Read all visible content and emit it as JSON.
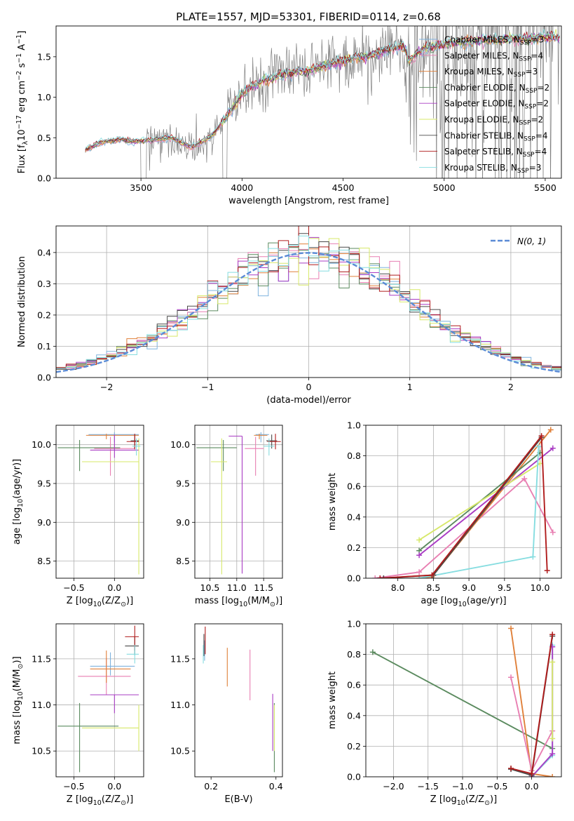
{
  "figure": {
    "title": "PLATE=1557, MJD=53301, FIBERID=0114, z=0.68"
  },
  "models": [
    {
      "key": "chabrier_miles",
      "label": "Chabrier MILES, N$_{SSP}$=3",
      "label_main": "Chabrier MILES, N",
      "label_sub": "SSP",
      "label_tail": "=3",
      "color": "#7fb3de"
    },
    {
      "key": "salpeter_miles",
      "label": "Salpeter MILES, N$_{SSP}$=4",
      "label_main": "Salpeter MILES, N",
      "label_sub": "SSP",
      "label_tail": "=4",
      "color": "#e87fb2"
    },
    {
      "key": "kroupa_miles",
      "label": "Kroupa MILES, N$_{SSP}$=3",
      "label_main": "Kroupa MILES, N",
      "label_sub": "SSP",
      "label_tail": "=3",
      "color": "#e0803a"
    },
    {
      "key": "chabrier_elodie",
      "label": "Chabrier ELODIE, N$_{SSP}$=2",
      "label_main": "Chabrier ELODIE, N",
      "label_sub": "SSP",
      "label_tail": "=2",
      "color": "#5a8a5e"
    },
    {
      "key": "salpeter_elodie",
      "label": "Salpeter ELODIE, N$_{SSP}$=2",
      "label_main": "Salpeter ELODIE, N",
      "label_sub": "SSP",
      "label_tail": "=2",
      "color": "#a93cc4"
    },
    {
      "key": "kroupa_elodie",
      "label": "Kroupa ELODIE, N$_{SSP}$=2",
      "label_main": "Kroupa ELODIE, N",
      "label_sub": "SSP",
      "label_tail": "=2",
      "color": "#d7e86a"
    },
    {
      "key": "chabrier_stelib",
      "label": "Chabrier STELIB, N$_{SSP}$=4",
      "label_main": "Chabrier STELIB, N",
      "label_sub": "SSP",
      "label_tail": "=4",
      "color": "#4a4a4a"
    },
    {
      "key": "salpeter_stelib",
      "label": "Salpeter STELIB, N$_{SSP}$=4",
      "label_main": "Salpeter STELIB, N",
      "label_sub": "SSP",
      "label_tail": "=4",
      "color": "#b01c1c"
    },
    {
      "key": "kroupa_stelib",
      "label": "Kroupa STELIB, N$_{SSP}$=3",
      "label_main": "Kroupa STELIB, N",
      "label_sub": "SSP",
      "label_tail": "=3",
      "color": "#86dde0"
    }
  ],
  "chart_data": [
    {
      "id": "spectrum",
      "type": "line",
      "xlabel": "wavelength [Angstrom, rest frame]",
      "ylabel": "Flux [f$_\\lambda$10$^{-17}$ erg cm$^{-2}$ s$^{-1}$ A$^{-1}$]",
      "xlim": [
        3080,
        5580
      ],
      "ylim": [
        0,
        1.88
      ],
      "xticks": [
        3500,
        4000,
        4500,
        5000,
        5500
      ],
      "yticks": [
        0.0,
        0.5,
        1.0,
        1.5
      ],
      "grid": false,
      "legend": "upper right",
      "data_color": "#808080",
      "data_range": [
        3225,
        5575
      ],
      "model_x": [
        3225,
        3300,
        3400,
        3450,
        3550,
        3650,
        3750,
        3850,
        3950,
        4000,
        4100,
        4200,
        4300,
        4400,
        4500,
        4600,
        4700,
        4800,
        4825,
        4900,
        5000,
        5100,
        5200,
        5300,
        5400,
        5500,
        5575
      ],
      "model_y": [
        0.35,
        0.44,
        0.48,
        0.45,
        0.47,
        0.5,
        0.38,
        0.52,
        0.85,
        1.05,
        1.2,
        1.28,
        1.32,
        1.38,
        1.45,
        1.5,
        1.57,
        1.64,
        1.45,
        1.6,
        1.65,
        1.68,
        1.7,
        1.72,
        1.72,
        1.74,
        1.74
      ]
    },
    {
      "id": "residual_hist",
      "type": "histogram",
      "xlabel": "(data-model)/error",
      "ylabel": "Normed distribution",
      "xlim": [
        -2.5,
        2.5
      ],
      "ylim": [
        0,
        0.485
      ],
      "xticks": [
        -2,
        -1,
        0,
        1,
        2
      ],
      "yticks": [
        0.0,
        0.1,
        0.2,
        0.3,
        0.4
      ],
      "grid": true,
      "legend": "upper right",
      "bin_width": 0.1,
      "gaussian": {
        "label": "$\\mathcal{N}(0,1)$",
        "label_main": "N(0, 1)",
        "mean": 0,
        "sigma": 1,
        "color": "#5b8bd6",
        "dash": true
      }
    },
    {
      "id": "age_vs_Z",
      "type": "errorbar",
      "xlabel": "Z [log$_{10}$(Z/Z$_\\odot$)]",
      "ylabel": "age  [log$_{10}$(age/yr)]",
      "xlim": [
        -0.72,
        0.36
      ],
      "ylim": [
        8.28,
        10.25
      ],
      "xticks": [
        -0.5,
        0.0
      ],
      "yticks": [
        8.5,
        9.0,
        9.5,
        10.0
      ],
      "grid": true,
      "series": [
        {
          "model": "chabrier_miles",
          "x": 0.0,
          "xerr": [
            0.32,
            0.3
          ],
          "y": 10.13,
          "yerr": [
            0.1,
            0.03
          ]
        },
        {
          "model": "salpeter_miles",
          "x": -0.05,
          "xerr": [
            0.2,
            0.3
          ],
          "y": 9.95,
          "yerr": [
            0.35,
            0.15
          ]
        },
        {
          "model": "kroupa_miles",
          "x": -0.1,
          "xerr": [
            0.25,
            0.4
          ],
          "y": 10.12,
          "yerr": [
            0.05,
            0.02
          ]
        },
        {
          "model": "chabrier_elodie",
          "x": -0.43,
          "xerr": [
            0.27,
            0.5
          ],
          "y": 9.96,
          "yerr": [
            0.3,
            0.1
          ]
        },
        {
          "model": "salpeter_elodie",
          "x": 0.0,
          "xerr": [
            0.3,
            0.3
          ],
          "y": 9.93,
          "yerr": [
            0.1,
            0.2
          ]
        },
        {
          "model": "kroupa_elodie",
          "x": 0.3,
          "xerr": [
            0.7,
            0.0
          ],
          "y": 9.78,
          "yerr": [
            1.45,
            0.3
          ]
        },
        {
          "model": "chabrier_stelib",
          "x": 0.25,
          "xerr": [
            0.05,
            0.05
          ],
          "y": 10.05,
          "yerr": [
            0.1,
            0.08
          ]
        },
        {
          "model": "salpeter_stelib",
          "x": 0.25,
          "xerr": [
            0.1,
            0.05
          ],
          "y": 10.04,
          "yerr": [
            0.1,
            0.1
          ]
        },
        {
          "model": "kroupa_stelib",
          "x": 0.27,
          "xerr": [
            0.05,
            0.05
          ],
          "y": 9.98,
          "yerr": [
            0.12,
            0.1
          ]
        }
      ]
    },
    {
      "id": "age_vs_mass",
      "type": "errorbar",
      "xlabel": "mass [log$_{10}$(M/M$_\\odot$)]",
      "ylabel": "",
      "xlim": [
        10.22,
        11.85
      ],
      "ylim": [
        8.28,
        10.25
      ],
      "xticks": [
        10.5,
        11.0,
        11.5
      ],
      "yticks": [
        8.5,
        9.0,
        9.5,
        10.0
      ],
      "grid": true,
      "series": [
        {
          "model": "chabrier_miles",
          "x": 11.45,
          "xerr": [
            0.1,
            0.15
          ],
          "y": 10.13,
          "yerr": [
            0.1,
            0.03
          ]
        },
        {
          "model": "salpeter_miles",
          "x": 11.35,
          "xerr": [
            0.2,
            0.15
          ],
          "y": 9.95,
          "yerr": [
            0.35,
            0.15
          ]
        },
        {
          "model": "kroupa_miles",
          "x": 11.42,
          "xerr": [
            0.1,
            0.15
          ],
          "y": 10.12,
          "yerr": [
            0.05,
            0.02
          ]
        },
        {
          "model": "chabrier_elodie",
          "x": 10.75,
          "xerr": [
            0.5,
            0.25
          ],
          "y": 9.96,
          "yerr": [
            0.3,
            0.1
          ]
        },
        {
          "model": "salpeter_elodie",
          "x": 11.1,
          "xerr": [
            0.25,
            0.0
          ],
          "y": 10.11,
          "yerr": [
            1.77,
            0.0
          ]
        },
        {
          "model": "kroupa_elodie",
          "x": 10.72,
          "xerr": [
            0.2,
            0.1
          ],
          "y": 9.78,
          "yerr": [
            1.45,
            0.3
          ]
        },
        {
          "model": "chabrier_stelib",
          "x": 11.65,
          "xerr": [
            0.1,
            0.1
          ],
          "y": 10.05,
          "yerr": [
            0.1,
            0.08
          ]
        },
        {
          "model": "salpeter_stelib",
          "x": 11.72,
          "xerr": [
            0.15,
            0.1
          ],
          "y": 10.04,
          "yerr": [
            0.1,
            0.1
          ]
        },
        {
          "model": "kroupa_stelib",
          "x": 11.6,
          "xerr": [
            0.1,
            0.1
          ],
          "y": 9.98,
          "yerr": [
            0.12,
            0.1
          ]
        }
      ]
    },
    {
      "id": "weight_vs_age",
      "type": "line",
      "xlabel": "age  [log$_{10}$(age/yr)]",
      "ylabel": "mass weight",
      "xlim": [
        7.55,
        10.3
      ],
      "ylim": [
        0,
        1.0
      ],
      "xticks": [
        8.0,
        8.5,
        9.0,
        9.5,
        10.0
      ],
      "yticks": [
        0.0,
        0.2,
        0.4,
        0.6,
        0.8,
        1.0
      ],
      "grid": true,
      "series": [
        {
          "model": "salpeter_miles",
          "x": [
            7.68,
            8.3,
            9.78,
            10.18
          ],
          "y": [
            0.0,
            0.04,
            0.65,
            0.3
          ]
        },
        {
          "model": "kroupa_miles",
          "x": [
            8.3,
            8.48,
            10.15
          ],
          "y": [
            0.0,
            0.01,
            0.97
          ]
        },
        {
          "model": "chabrier_elodie",
          "x": [
            8.3,
            10.0
          ],
          "y": [
            0.18,
            0.82
          ]
        },
        {
          "model": "salpeter_elodie",
          "x": [
            8.3,
            10.18
          ],
          "y": [
            0.15,
            0.85
          ]
        },
        {
          "model": "kroupa_elodie",
          "x": [
            8.3,
            10.0
          ],
          "y": [
            0.25,
            0.75
          ]
        },
        {
          "model": "kroupa_stelib",
          "x": [
            8.3,
            9.9,
            9.98
          ],
          "y": [
            0.0,
            0.14,
            0.86
          ]
        },
        {
          "model": "chabrier_stelib",
          "x": [
            7.8,
            8.5,
            10.02
          ],
          "y": [
            0.0,
            0.02,
            0.92
          ]
        },
        {
          "model": "salpeter_stelib",
          "x": [
            7.75,
            8.48,
            10.02,
            10.1
          ],
          "y": [
            0.0,
            0.02,
            0.93,
            0.05
          ]
        }
      ]
    },
    {
      "id": "mass_vs_Z",
      "type": "errorbar",
      "xlabel": "Z [log$_{10}$(Z/Z$_\\odot$)]",
      "ylabel": "mass [log$_{10}$(M/M$_\\odot$)]",
      "xlim": [
        -0.72,
        0.36
      ],
      "ylim": [
        10.22,
        11.88
      ],
      "xticks": [
        -0.5,
        0.0
      ],
      "yticks": [
        10.5,
        11.0,
        11.5
      ],
      "grid": true,
      "series": [
        {
          "model": "chabrier_miles",
          "x": -0.05,
          "xerr": [
            0.25,
            0.3
          ],
          "y": 11.42,
          "yerr": [
            0.1,
            0.15
          ]
        },
        {
          "model": "salpeter_miles",
          "x": -0.1,
          "xerr": [
            0.35,
            0.3
          ],
          "y": 11.31,
          "yerr": [
            0.2,
            0.2
          ]
        },
        {
          "model": "kroupa_miles",
          "x": -0.1,
          "xerr": [
            0.2,
            0.3
          ],
          "y": 11.39,
          "yerr": [
            0.15,
            0.2
          ]
        },
        {
          "model": "chabrier_elodie",
          "x": -0.43,
          "xerr": [
            0.27,
            0.48
          ],
          "y": 10.77,
          "yerr": [
            0.5,
            0.25
          ]
        },
        {
          "model": "salpeter_elodie",
          "x": 0.0,
          "xerr": [
            0.3,
            0.3
          ],
          "y": 11.11,
          "yerr": [
            0.2,
            0.0
          ]
        },
        {
          "model": "kroupa_elodie",
          "x": 0.3,
          "xerr": [
            0.7,
            0.0
          ],
          "y": 10.75,
          "yerr": [
            0.25,
            0.25
          ]
        },
        {
          "model": "chabrier_stelib",
          "x": 0.25,
          "xerr": [
            0.12,
            0.05
          ],
          "y": 11.64,
          "yerr": [
            0.1,
            0.1
          ]
        },
        {
          "model": "salpeter_stelib",
          "x": 0.25,
          "xerr": [
            0.12,
            0.05
          ],
          "y": 11.74,
          "yerr": [
            0.15,
            0.12
          ]
        },
        {
          "model": "kroupa_stelib",
          "x": 0.25,
          "xerr": [
            0.1,
            0.05
          ],
          "y": 11.55,
          "yerr": [
            0.1,
            0.1
          ]
        }
      ]
    },
    {
      "id": "mass_vs_EBV",
      "type": "errorbar",
      "xlabel": "E(B-V)",
      "ylabel": "",
      "xlim": [
        0.15,
        0.42
      ],
      "ylim": [
        10.22,
        11.88
      ],
      "xticks": [
        0.2,
        0.4
      ],
      "yticks": [
        10.5,
        11.0,
        11.5
      ],
      "grid": false,
      "series": [
        {
          "model": "chabrier_miles",
          "x": 0.18,
          "xerr": [
            0,
            0
          ],
          "y": 11.6,
          "yerr": [
            0.12,
            0.1
          ]
        },
        {
          "model": "salpeter_miles",
          "x": 0.32,
          "xerr": [
            0,
            0
          ],
          "y": 11.3,
          "yerr": [
            0.25,
            0.3
          ]
        },
        {
          "model": "kroupa_miles",
          "x": 0.25,
          "xerr": [
            0,
            0
          ],
          "y": 11.42,
          "yerr": [
            0.22,
            0.2
          ]
        },
        {
          "model": "chabrier_elodie",
          "x": 0.395,
          "xerr": [
            0,
            0
          ],
          "y": 10.77,
          "yerr": [
            0.5,
            0.25
          ]
        },
        {
          "model": "salpeter_elodie",
          "x": 0.39,
          "xerr": [
            0,
            0
          ],
          "y": 10.9,
          "yerr": [
            0.4,
            0.22
          ]
        },
        {
          "model": "kroupa_elodie",
          "x": 0.395,
          "xerr": [
            0,
            0
          ],
          "y": 10.75,
          "yerr": [
            0.25,
            0.25
          ]
        },
        {
          "model": "chabrier_stelib",
          "x": 0.178,
          "xerr": [
            0,
            0
          ],
          "y": 11.65,
          "yerr": [
            0.12,
            0.12
          ]
        },
        {
          "model": "salpeter_stelib",
          "x": 0.182,
          "xerr": [
            0,
            0
          ],
          "y": 11.7,
          "yerr": [
            0.15,
            0.15
          ]
        },
        {
          "model": "kroupa_stelib",
          "x": 0.176,
          "xerr": [
            0,
            0
          ],
          "y": 11.55,
          "yerr": [
            0.1,
            0.1
          ]
        }
      ]
    },
    {
      "id": "weight_vs_Z",
      "type": "line",
      "xlabel": "Z [log$_{10}$(Z/Z$_\\odot$)]",
      "ylabel": "mass weight",
      "xlim": [
        -2.4,
        0.43
      ],
      "ylim": [
        0,
        1.0
      ],
      "xticks": [
        -2.0,
        -1.5,
        -1.0,
        -0.5,
        0.0
      ],
      "yticks": [
        0.0,
        0.2,
        0.4,
        0.6,
        0.8,
        1.0
      ],
      "grid": true,
      "series": [
        {
          "model": "chabrier_elodie",
          "x": [
            -2.3,
            0.3
          ],
          "y": [
            0.815,
            0.185
          ]
        },
        {
          "model": "kroupa_miles",
          "x": [
            -0.3,
            0.0,
            0.3
          ],
          "y": [
            0.97,
            0.02,
            0.0
          ]
        },
        {
          "model": "salpeter_miles",
          "x": [
            -0.3,
            0.0,
            0.3
          ],
          "y": [
            0.65,
            0.04,
            0.3
          ]
        },
        {
          "model": "kroupa_stelib",
          "x": [
            0.0,
            0.3,
            0.3
          ],
          "y": [
            0.0,
            0.14,
            0.86
          ]
        },
        {
          "model": "salpeter_elodie",
          "x": [
            0.0,
            0.3,
            0.3
          ],
          "y": [
            0.0,
            0.15,
            0.85
          ]
        },
        {
          "model": "kroupa_elodie",
          "x": [
            0.3,
            0.3
          ],
          "y": [
            0.25,
            0.75
          ]
        },
        {
          "model": "chabrier_stelib",
          "x": [
            -0.3,
            0.0,
            0.3
          ],
          "y": [
            0.05,
            0.01,
            0.92
          ]
        },
        {
          "model": "salpeter_stelib",
          "x": [
            -0.3,
            0.0,
            0.3
          ],
          "y": [
            0.055,
            0.02,
            0.93
          ]
        }
      ]
    }
  ]
}
